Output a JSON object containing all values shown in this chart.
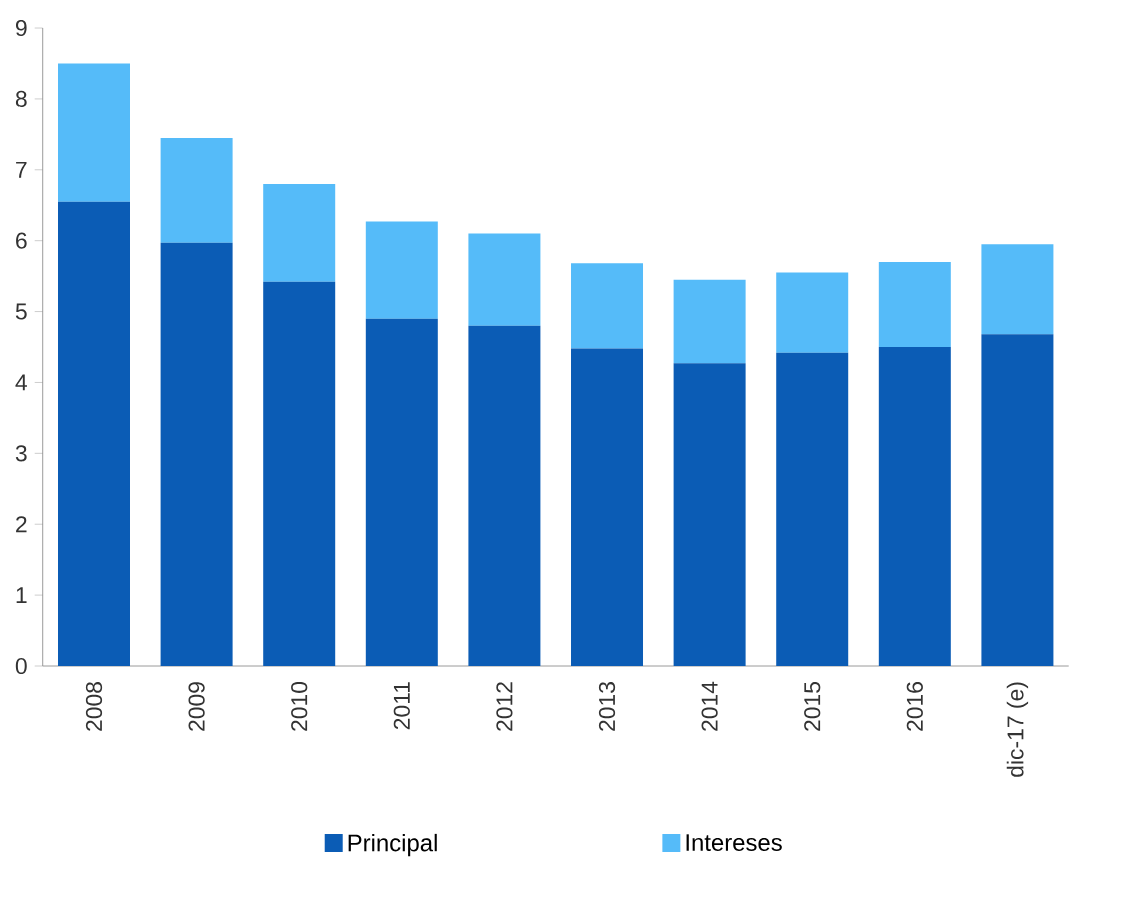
{
  "chart_data": {
    "type": "bar",
    "stacked": true,
    "categories": [
      "2008",
      "2009",
      "2010",
      "2011",
      "2012",
      "2013",
      "2014",
      "2015",
      "2016",
      "dic-17 (e)"
    ],
    "series": [
      {
        "name": "Principal",
        "color": "#0b5cb5",
        "values": [
          6.55,
          5.97,
          5.42,
          4.9,
          4.8,
          4.48,
          4.27,
          4.42,
          4.5,
          4.68
        ]
      },
      {
        "name": "Intereses",
        "color": "#55bbf9",
        "values": [
          1.95,
          1.48,
          1.38,
          1.37,
          1.3,
          1.2,
          1.18,
          1.13,
          1.2,
          1.27
        ]
      }
    ],
    "ylim": [
      0,
      9
    ],
    "yticks": [
      0,
      1,
      2,
      3,
      4,
      5,
      6,
      7,
      8,
      9
    ],
    "legend": "bottom"
  }
}
